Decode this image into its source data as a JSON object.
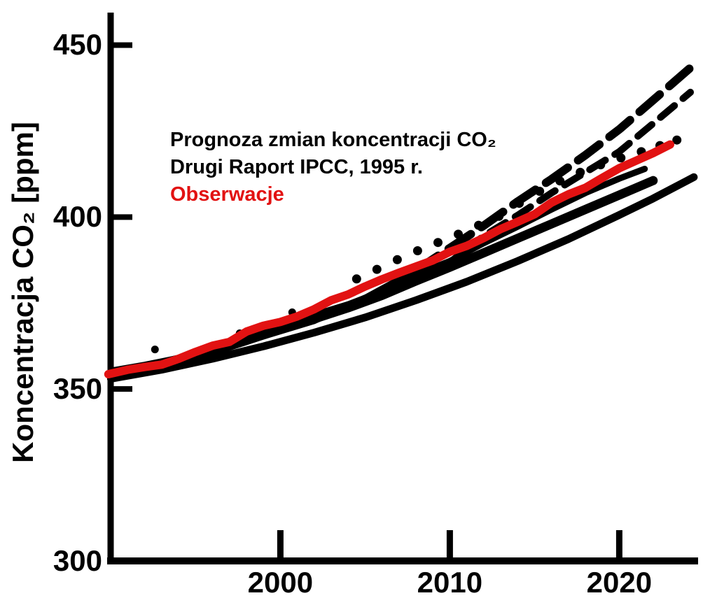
{
  "figure": {
    "background": "#ffffff",
    "axis_color": "#000000",
    "observation_color": "#e21212",
    "projection_color": "#000000"
  },
  "chart_data": {
    "type": "line",
    "title": "",
    "xlabel": "",
    "ylabel": "Koncentracja CO₂ [ppm]",
    "y_unit": "ppm",
    "x_unit": "year",
    "x_ticks": [
      2000,
      2010,
      2020
    ],
    "y_ticks": [
      300,
      350,
      400,
      450
    ],
    "xlim": [
      1990,
      2024.6
    ],
    "ylim": [
      300,
      460
    ],
    "grid": false,
    "legend": {
      "position": "upper-left",
      "line1": "Prognoza zmian koncentracji CO₂",
      "line2": "Drugi Raport IPCC, 1995 r.",
      "line3": "Obserwacje"
    },
    "series": [
      {
        "id": "band-bottom",
        "group": "prognoza-ipcc-1995",
        "style": "solid",
        "color": "#000000",
        "width": 11,
        "dash": null,
        "points": [
          [
            1990,
            353
          ],
          [
            1993,
            355.6
          ],
          [
            1996,
            358.8
          ],
          [
            1999,
            362.4
          ],
          [
            2002,
            366.4
          ],
          [
            2005,
            370.8
          ],
          [
            2008,
            375.8
          ],
          [
            2011,
            381.2
          ],
          [
            2014,
            387.2
          ],
          [
            2017,
            393.6
          ],
          [
            2020,
            400.6
          ],
          [
            2022,
            405.4
          ],
          [
            2024.4,
            411.6
          ]
        ]
      },
      {
        "id": "band-core-thick",
        "group": "prognoza-ipcc-1995",
        "style": "solid",
        "color": "#000000",
        "width": 13,
        "dash": null,
        "points": [
          [
            1990,
            354.3
          ],
          [
            1992,
            356.2
          ],
          [
            1994,
            358.2
          ],
          [
            1996,
            360.9
          ],
          [
            1998,
            364.1
          ],
          [
            2000,
            367.4
          ],
          [
            2002,
            370.4
          ],
          [
            2004,
            373.6
          ],
          [
            2006,
            377.2
          ],
          [
            2008,
            381.4
          ],
          [
            2010,
            385.4
          ],
          [
            2012,
            389.6
          ],
          [
            2014,
            393.8
          ],
          [
            2016,
            398
          ],
          [
            2018,
            402.2
          ],
          [
            2020,
            406.4
          ],
          [
            2022,
            410.6
          ]
        ]
      },
      {
        "id": "band-core-upper",
        "group": "prognoza-ipcc-1995",
        "style": "solid",
        "color": "#000000",
        "width": 9,
        "dash": null,
        "points": [
          [
            1990,
            355.3
          ],
          [
            1992,
            357
          ],
          [
            1994,
            359
          ],
          [
            1996,
            361.8
          ],
          [
            1998,
            365.2
          ],
          [
            2000,
            368.6
          ],
          [
            2002,
            371.6
          ],
          [
            2004,
            374.6
          ],
          [
            2006,
            378.4
          ],
          [
            2008,
            383.2
          ],
          [
            2010,
            387.2
          ],
          [
            2012,
            392.4
          ],
          [
            2014,
            397.2
          ],
          [
            2016,
            402.2
          ],
          [
            2018,
            407
          ],
          [
            2020,
            411.2
          ],
          [
            2021.5,
            414
          ]
        ]
      },
      {
        "id": "scenario-mid-solid",
        "group": "prognoza-ipcc-1995",
        "style": "solid",
        "color": "#000000",
        "width": 8,
        "dash": null,
        "points": [
          [
            1990,
            354.6
          ],
          [
            1995,
            360.3
          ],
          [
            2000,
            367.3
          ],
          [
            2004,
            374
          ],
          [
            2008,
            382
          ]
        ]
      },
      {
        "id": "scenario-mid-dashed",
        "group": "prognoza-ipcc-1995",
        "style": "dashed",
        "color": "#000000",
        "width": 10,
        "dash": "26 16",
        "points": [
          [
            2008,
            382
          ],
          [
            2010,
            386.8
          ],
          [
            2012,
            394.5
          ],
          [
            2014,
            400.5
          ],
          [
            2016,
            407
          ],
          [
            2018,
            413
          ],
          [
            2020,
            419
          ],
          [
            2022,
            427.2
          ],
          [
            2024.2,
            436.3
          ]
        ]
      },
      {
        "id": "scenario-upper-solid",
        "group": "prognoza-ipcc-1995",
        "style": "solid",
        "color": "#000000",
        "width": 9,
        "dash": null,
        "points": [
          [
            1990,
            355
          ],
          [
            1994,
            358.9
          ],
          [
            1998,
            363.8
          ],
          [
            2002,
            369.8
          ],
          [
            2005,
            376.5
          ],
          [
            2008,
            384.5
          ]
        ]
      },
      {
        "id": "scenario-upper-dashed",
        "group": "prognoza-ipcc-1995",
        "style": "dashed",
        "color": "#000000",
        "width": 12,
        "dash": "38 18",
        "points": [
          [
            2008,
            384.5
          ],
          [
            2010,
            391
          ],
          [
            2012,
            397.5
          ],
          [
            2014,
            404.5
          ],
          [
            2016,
            411
          ],
          [
            2018,
            418
          ],
          [
            2020,
            425.5
          ],
          [
            2022,
            434
          ],
          [
            2024.2,
            443.4
          ]
        ]
      },
      {
        "id": "scenario-dotted",
        "group": "prognoza-ipcc-1995",
        "style": "dots",
        "color": "#000000",
        "width": 13,
        "dash": null,
        "points": [
          [
            2004.5,
            382
          ],
          [
            2005.7,
            384.8
          ],
          [
            2006.9,
            387.6
          ],
          [
            2008.1,
            390.2
          ],
          [
            2009.3,
            392.6
          ],
          [
            2010.5,
            395
          ],
          [
            2011.7,
            397.6
          ],
          [
            2012.9,
            400.2
          ],
          [
            2014.1,
            404
          ],
          [
            2015.3,
            407.5
          ],
          [
            2016.5,
            410.5
          ],
          [
            2017.7,
            413
          ],
          [
            2018.9,
            415.2
          ],
          [
            2020.1,
            417.2
          ],
          [
            2021.3,
            419
          ],
          [
            2022.4,
            420.8
          ],
          [
            2023.4,
            422.4
          ]
        ]
      },
      {
        "id": "band-bumps",
        "group": "prognoza-ipcc-1995",
        "style": "dots",
        "color": "#000000",
        "width": 11,
        "dash": null,
        "points": [
          [
            1992.6,
            361.5
          ],
          [
            1997.6,
            366.2
          ],
          [
            2000.7,
            372.3
          ]
        ]
      },
      {
        "id": "obserwacje",
        "group": "obserwacje",
        "style": "solid",
        "color": "#e21212",
        "width": 12,
        "dash": null,
        "points": [
          [
            1989.85,
            354.3
          ],
          [
            1991,
            355.6
          ],
          [
            1992,
            356.4
          ],
          [
            1993,
            357.1
          ],
          [
            1994,
            358.8
          ],
          [
            1995,
            360.8
          ],
          [
            1996,
            362.6
          ],
          [
            1997,
            363.7
          ],
          [
            1998,
            366.7
          ],
          [
            1999,
            368.4
          ],
          [
            2000,
            369.5
          ],
          [
            2001,
            371.1
          ],
          [
            2002,
            373.2
          ],
          [
            2003,
            375.8
          ],
          [
            2004,
            377.5
          ],
          [
            2005,
            379.8
          ],
          [
            2006,
            381.9
          ],
          [
            2007,
            383.8
          ],
          [
            2008,
            385.6
          ],
          [
            2009,
            387.4
          ],
          [
            2010,
            389.9
          ],
          [
            2011,
            391.6
          ],
          [
            2012,
            393.9
          ],
          [
            2013,
            396.5
          ],
          [
            2014,
            398.6
          ],
          [
            2015,
            400.8
          ],
          [
            2016,
            404.2
          ],
          [
            2017,
            406.6
          ],
          [
            2018,
            408.5
          ],
          [
            2019,
            411.4
          ],
          [
            2020,
            414.2
          ],
          [
            2021,
            416.4
          ],
          [
            2022,
            418.6
          ],
          [
            2023,
            421.1
          ]
        ]
      }
    ]
  }
}
